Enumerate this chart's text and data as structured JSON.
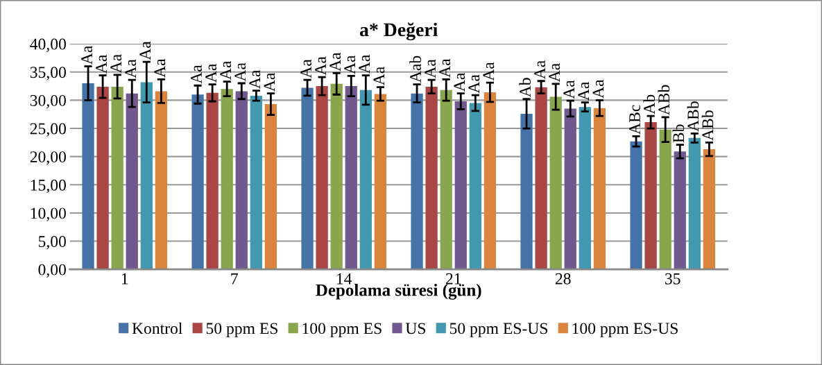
{
  "chart_data": {
    "type": "bar",
    "title": "a* Değeri",
    "xlabel": "Depolama süresi (gün)",
    "categories": [
      "1",
      "7",
      "14",
      "21",
      "28",
      "35"
    ],
    "series": [
      {
        "name": "Kontrol",
        "color": "#4572a7",
        "values": [
          33.0,
          31.0,
          32.2,
          31.2,
          27.6,
          22.7
        ],
        "errors": [
          3.0,
          1.6,
          1.4,
          1.6,
          2.6,
          0.9
        ],
        "value_labels": [
          "Aa",
          "Aa",
          "Aa",
          "Aab",
          "Ab",
          "ABc"
        ]
      },
      {
        "name": "50 ppm ES",
        "color": "#aa4643",
        "values": [
          32.4,
          31.3,
          32.5,
          32.4,
          32.3,
          26.1
        ],
        "errors": [
          2.0,
          1.5,
          1.6,
          1.2,
          1.1,
          1.1
        ],
        "value_labels": [
          "Aa",
          "Aa",
          "Aa",
          "Aa",
          "Aa",
          "Ab"
        ]
      },
      {
        "name": "100 ppm ES",
        "color": "#89a54e",
        "values": [
          32.4,
          32.0,
          32.9,
          31.8,
          30.6,
          24.8
        ],
        "errors": [
          2.1,
          1.3,
          1.9,
          1.9,
          2.3,
          2.2
        ],
        "value_labels": [
          "Aa",
          "Aa",
          "Aa",
          "Aa",
          "Aa",
          "ABb"
        ]
      },
      {
        "name": "US",
        "color": "#71588f",
        "values": [
          31.2,
          31.6,
          32.5,
          29.8,
          28.5,
          20.9
        ],
        "errors": [
          2.4,
          1.4,
          1.8,
          1.4,
          1.4,
          1.2
        ],
        "value_labels": [
          "Aa",
          "Aa",
          "Aa",
          "Aa",
          "Aa",
          "Bb"
        ]
      },
      {
        "name": "50 ppm ES-US",
        "color": "#4198af",
        "values": [
          33.2,
          30.8,
          31.8,
          29.5,
          28.8,
          23.3
        ],
        "errors": [
          3.6,
          0.9,
          2.6,
          1.4,
          0.8,
          0.8
        ],
        "value_labels": [
          "Aa",
          "Aa",
          "Aa",
          "Aa",
          "Aa",
          "ABb"
        ]
      },
      {
        "name": "100 ppm ES-US",
        "color": "#db843d",
        "values": [
          31.6,
          29.3,
          31.1,
          31.4,
          28.6,
          21.3
        ],
        "errors": [
          2.1,
          1.9,
          1.2,
          1.7,
          1.4,
          1.2
        ],
        "value_labels": [
          "Aa",
          "Aa",
          "Aa",
          "Aa",
          "Aa",
          "ABb"
        ]
      }
    ],
    "ylim": [
      0,
      40
    ],
    "yticks": [
      {
        "value": 0,
        "label": "0,00"
      },
      {
        "value": 5,
        "label": "5,00"
      },
      {
        "value": 10,
        "label": "10,00"
      },
      {
        "value": 15,
        "label": "15,00"
      },
      {
        "value": 20,
        "label": "20,00"
      },
      {
        "value": 25,
        "label": "25,00"
      },
      {
        "value": 30,
        "label": "30,00"
      },
      {
        "value": 35,
        "label": "35,00"
      },
      {
        "value": 40,
        "label": "40,00"
      }
    ],
    "grid": "y",
    "legend": "bottom"
  }
}
